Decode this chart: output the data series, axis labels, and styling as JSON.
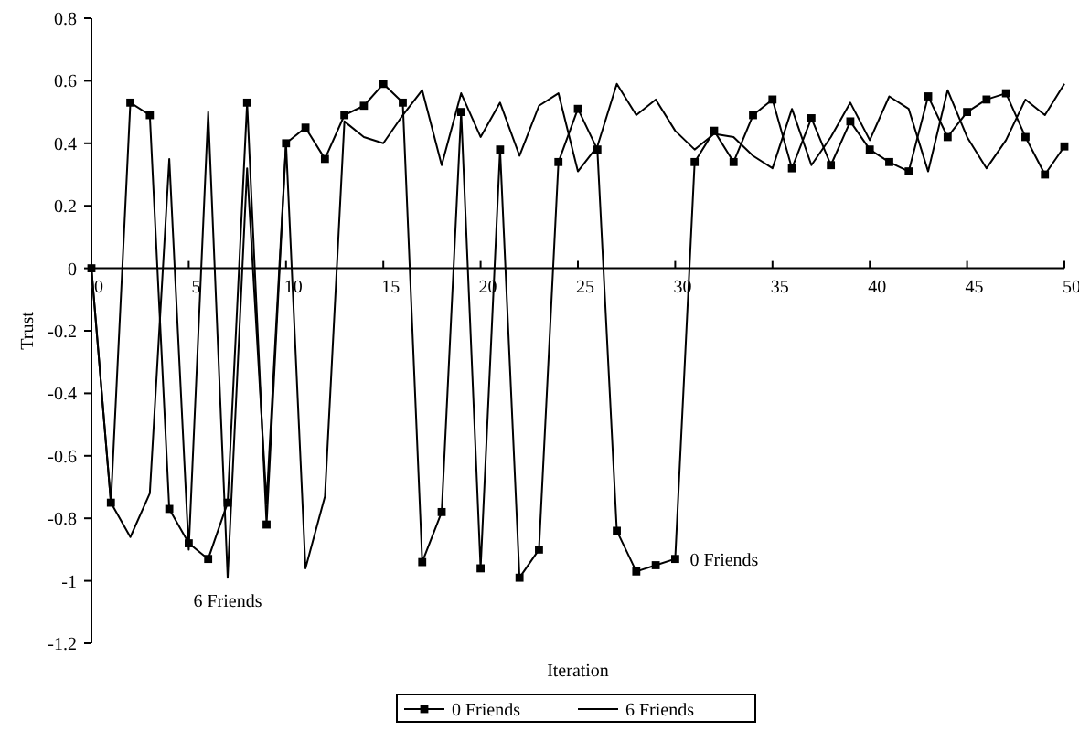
{
  "chart_data": {
    "type": "line",
    "xlabel": "Iteration",
    "ylabel": "Trust",
    "x": [
      0,
      1,
      2,
      3,
      4,
      5,
      6,
      7,
      8,
      9,
      10,
      11,
      12,
      13,
      14,
      15,
      16,
      17,
      18,
      19,
      20,
      21,
      22,
      23,
      24,
      25,
      26,
      27,
      28,
      29,
      30,
      31,
      32,
      33,
      34,
      35,
      36,
      37,
      38,
      39,
      40,
      41,
      42,
      43,
      44,
      45,
      46,
      47,
      48,
      49,
      50
    ],
    "series": [
      {
        "name": "0 Friends",
        "color": "#000000",
        "marker": "square",
        "values": [
          0,
          -0.75,
          0.53,
          0.49,
          -0.77,
          -0.88,
          -0.93,
          -0.75,
          0.53,
          -0.82,
          0.4,
          0.45,
          0.35,
          0.49,
          0.52,
          0.59,
          0.53,
          -0.94,
          -0.78,
          0.5,
          -0.96,
          0.38,
          -0.99,
          -0.9,
          0.34,
          0.51,
          0.38,
          -0.84,
          -0.97,
          -0.95,
          -0.93,
          0.34,
          0.44,
          0.34,
          0.49,
          0.54,
          0.32,
          0.48,
          0.33,
          0.47,
          0.38,
          0.34,
          0.31,
          0.55,
          0.42,
          0.5,
          0.54,
          0.56,
          0.42,
          0.3,
          0.39
        ]
      },
      {
        "name": "6 Friends",
        "color": "#000000",
        "marker": "none",
        "values": [
          0,
          -0.75,
          -0.86,
          -0.72,
          0.35,
          -0.9,
          0.5,
          -0.99,
          0.32,
          -0.75,
          0.4,
          -0.96,
          -0.73,
          0.47,
          0.42,
          0.4,
          0.49,
          0.57,
          0.33,
          0.56,
          0.42,
          0.53,
          0.36,
          0.52,
          0.56,
          0.31,
          0.39,
          0.59,
          0.49,
          0.54,
          0.44,
          0.38,
          0.43,
          0.42,
          0.36,
          0.32,
          0.51,
          0.33,
          0.42,
          0.53,
          0.41,
          0.55,
          0.51,
          0.31,
          0.57,
          0.42,
          0.32,
          0.41,
          0.54,
          0.49,
          0.59
        ]
      }
    ],
    "xlim": [
      0,
      50
    ],
    "xticks": [
      0,
      5,
      10,
      15,
      20,
      25,
      30,
      35,
      40,
      45,
      50
    ],
    "ylim": [
      -1.2,
      0.8
    ],
    "yticks": [
      -1.2,
      -1,
      -0.8,
      -0.6,
      -0.4,
      -0.2,
      0,
      0.2,
      0.4,
      0.6,
      0.8
    ],
    "grid": false,
    "legend": "bottom",
    "annotations": [
      {
        "text": "0 Friends",
        "x": 30,
        "y": -0.93
      },
      {
        "text": "6 Friends",
        "x": 7,
        "y": -0.99
      }
    ]
  }
}
